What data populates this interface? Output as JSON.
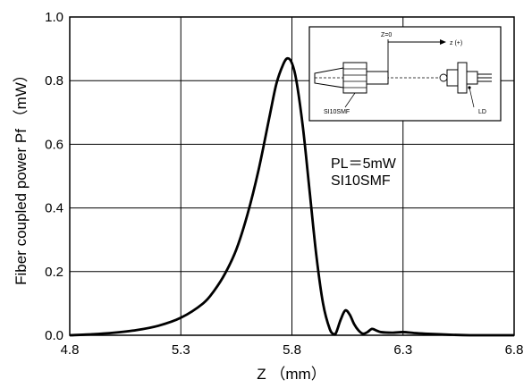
{
  "chart_data": {
    "type": "line",
    "xlabel": "Z （mm）",
    "ylabel": "Fiber coupled power   Pf （mW）",
    "xlim": [
      4.8,
      6.8
    ],
    "ylim": [
      0.0,
      1.0
    ],
    "x_ticks": [
      "4.8",
      "5.3",
      "5.8",
      "6.3",
      "6.8"
    ],
    "y_ticks": [
      "0.0",
      "0.2",
      "0.4",
      "0.6",
      "0.8",
      "1.0"
    ],
    "grid": true,
    "annotations": [
      "PL＝5mW",
      "SI10SMF"
    ],
    "series": [
      {
        "x": [
          4.8,
          4.9,
          5.0,
          5.1,
          5.2,
          5.3,
          5.4,
          5.45,
          5.5,
          5.55,
          5.6,
          5.65,
          5.7,
          5.73,
          5.76,
          5.78,
          5.8,
          5.82,
          5.85,
          5.88,
          5.91,
          5.94,
          5.97,
          5.99,
          6.0,
          6.02,
          6.04,
          6.06,
          6.08,
          6.1,
          6.12,
          6.14,
          6.16,
          6.18,
          6.2,
          6.25,
          6.3,
          6.35,
          6.4,
          6.5,
          6.6,
          6.8
        ],
        "y": [
          0.0,
          0.003,
          0.008,
          0.016,
          0.03,
          0.055,
          0.1,
          0.14,
          0.195,
          0.27,
          0.38,
          0.52,
          0.69,
          0.79,
          0.85,
          0.87,
          0.855,
          0.8,
          0.65,
          0.45,
          0.25,
          0.1,
          0.02,
          0.003,
          0.01,
          0.05,
          0.078,
          0.065,
          0.035,
          0.015,
          0.005,
          0.01,
          0.02,
          0.015,
          0.01,
          0.008,
          0.01,
          0.007,
          0.005,
          0.002,
          0.0,
          0.0
        ]
      }
    ]
  },
  "inset": {
    "z0_label": "Z=0",
    "z_dir_label": "z (+)",
    "fiber_label": "SI10SMF",
    "ld_label": "LD"
  }
}
